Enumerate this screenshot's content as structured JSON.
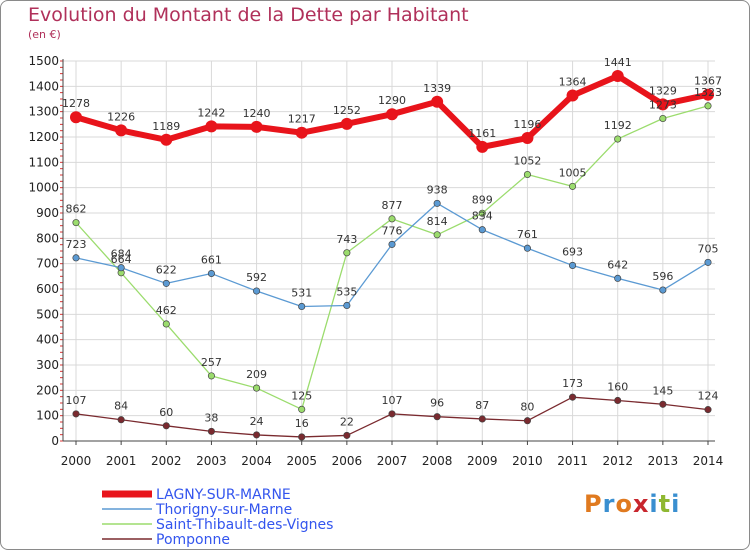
{
  "header": {
    "title": "Evolution du Montant de la Dette par Habitant",
    "unit": "(en €)"
  },
  "logo": {
    "text": "Proxiti",
    "colors": [
      "#e07a1f",
      "#3a8fd0",
      "#e07a1f",
      "#c8262d",
      "#3a8fd0",
      "#8fb832",
      "#3a8fd0"
    ]
  },
  "chart_data": {
    "type": "line",
    "title": "Evolution du Montant de la Dette par Habitant",
    "ylabel": "(en €)",
    "xlabel": "",
    "x": [
      "2000",
      "2001",
      "2002",
      "2003",
      "2004",
      "2005",
      "2006",
      "2007",
      "2008",
      "2009",
      "2010",
      "2011",
      "2012",
      "2013",
      "2014"
    ],
    "ylim": [
      0,
      1500
    ],
    "yticks": [
      0,
      100,
      200,
      300,
      400,
      500,
      600,
      700,
      800,
      900,
      1000,
      1100,
      1200,
      1300,
      1400,
      1500
    ],
    "grid": true,
    "legend": "bottom-left",
    "series": [
      {
        "name": "LAGNY-SUR-MARNE",
        "color": "#e8141b",
        "values": [
          1278,
          1226,
          1189,
          1242,
          1240,
          1217,
          1252,
          1290,
          1339,
          1161,
          1196,
          1364,
          1441,
          1329,
          1367
        ]
      },
      {
        "name": "Thorigny-sur-Marne",
        "color": "#5b9ad3",
        "values": [
          723,
          684,
          622,
          661,
          592,
          531,
          535,
          776,
          938,
          834,
          761,
          693,
          642,
          596,
          705
        ]
      },
      {
        "name": "Saint-Thibault-des-Vignes",
        "color": "#9bdc6d",
        "values": [
          862,
          664,
          462,
          257,
          209,
          125,
          743,
          877,
          814,
          899,
          1052,
          1005,
          1192,
          1273,
          1323
        ]
      },
      {
        "name": "Pomponne",
        "color": "#7a2a2f",
        "values": [
          107,
          84,
          60,
          38,
          24,
          16,
          22,
          107,
          96,
          87,
          80,
          173,
          160,
          145,
          124
        ]
      }
    ]
  }
}
